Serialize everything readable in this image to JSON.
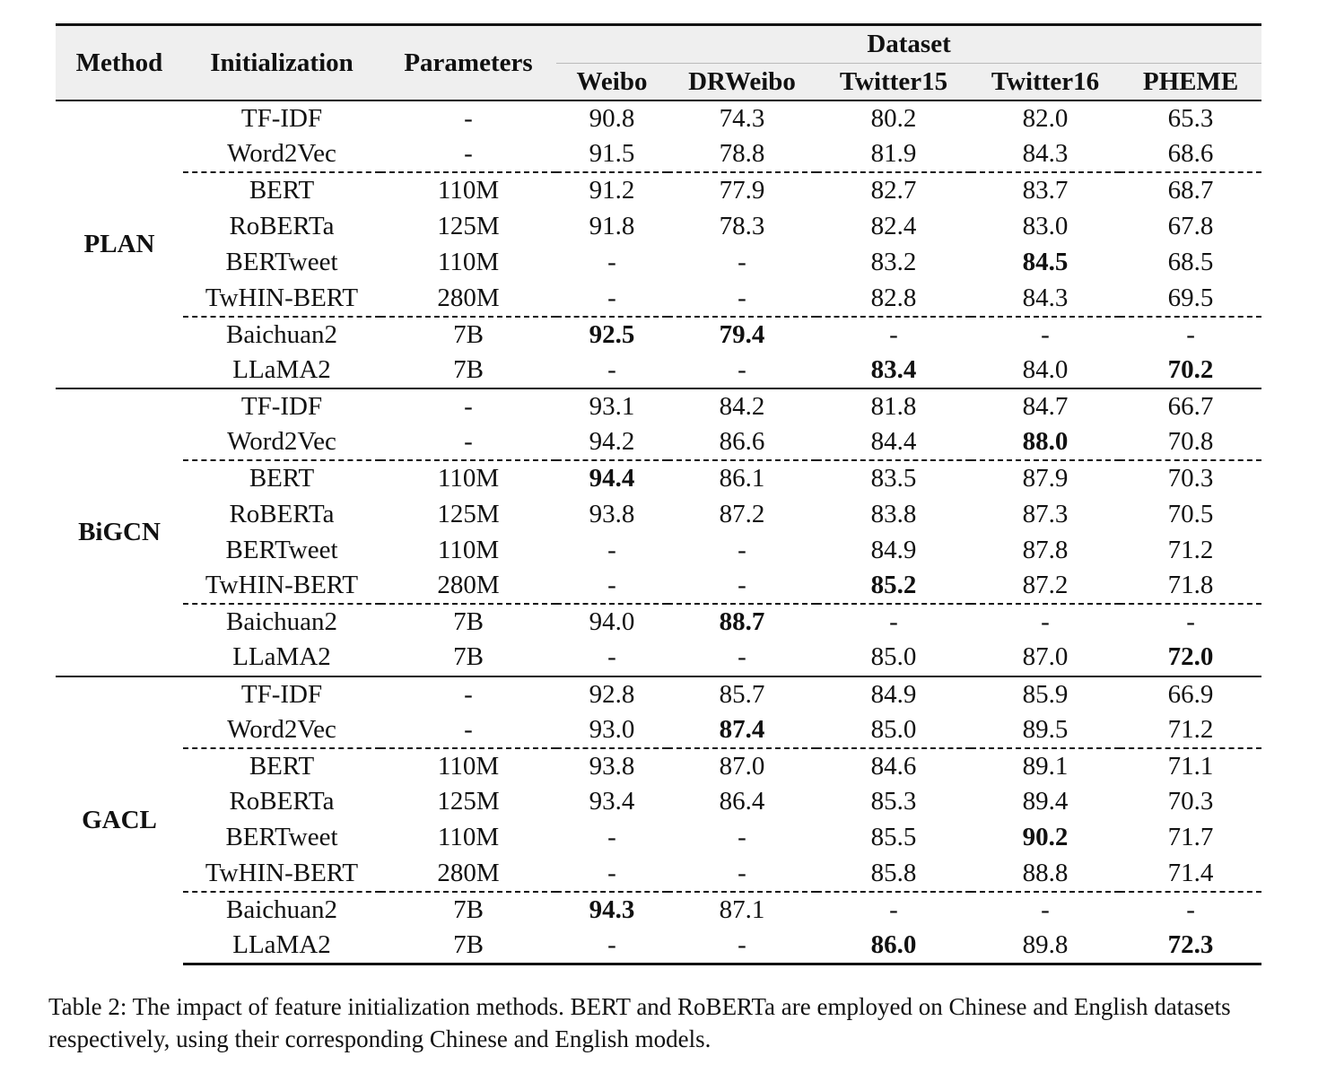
{
  "table": {
    "headers": {
      "method": "Method",
      "initialization": "Initialization",
      "parameters": "Parameters",
      "dataset_group": "Dataset",
      "datasets": [
        "Weibo",
        "DRWeibo",
        "Twitter15",
        "Twitter16",
        "PHEME"
      ]
    },
    "groups": [
      {
        "method": "PLAN",
        "rows": [
          {
            "init": "TF-IDF",
            "params": "-",
            "values": [
              "90.8",
              "74.3",
              "80.2",
              "82.0",
              "65.3"
            ],
            "bold": []
          },
          {
            "init": "Word2Vec",
            "params": "-",
            "values": [
              "91.5",
              "78.8",
              "81.9",
              "84.3",
              "68.6"
            ],
            "bold": []
          },
          {
            "init": "BERT",
            "params": "110M",
            "values": [
              "91.2",
              "77.9",
              "82.7",
              "83.7",
              "68.7"
            ],
            "bold": []
          },
          {
            "init": "RoBERTa",
            "params": "125M",
            "values": [
              "91.8",
              "78.3",
              "82.4",
              "83.0",
              "67.8"
            ],
            "bold": []
          },
          {
            "init": "BERTweet",
            "params": "110M",
            "values": [
              "-",
              "-",
              "83.2",
              "84.5",
              "68.5"
            ],
            "bold": [
              3
            ]
          },
          {
            "init": "TwHIN-BERT",
            "params": "280M",
            "values": [
              "-",
              "-",
              "82.8",
              "84.3",
              "69.5"
            ],
            "bold": []
          },
          {
            "init": "Baichuan2",
            "params": "7B",
            "values": [
              "92.5",
              "79.4",
              "-",
              "-",
              "-"
            ],
            "bold": [
              0,
              1
            ]
          },
          {
            "init": "LLaMA2",
            "params": "7B",
            "values": [
              "-",
              "-",
              "83.4",
              "84.0",
              "70.2"
            ],
            "bold": [
              2,
              4
            ]
          }
        ]
      },
      {
        "method": "BiGCN",
        "rows": [
          {
            "init": "TF-IDF",
            "params": "-",
            "values": [
              "93.1",
              "84.2",
              "81.8",
              "84.7",
              "66.7"
            ],
            "bold": []
          },
          {
            "init": "Word2Vec",
            "params": "-",
            "values": [
              "94.2",
              "86.6",
              "84.4",
              "88.0",
              "70.8"
            ],
            "bold": [
              3
            ]
          },
          {
            "init": "BERT",
            "params": "110M",
            "values": [
              "94.4",
              "86.1",
              "83.5",
              "87.9",
              "70.3"
            ],
            "bold": [
              0
            ]
          },
          {
            "init": "RoBERTa",
            "params": "125M",
            "values": [
              "93.8",
              "87.2",
              "83.8",
              "87.3",
              "70.5"
            ],
            "bold": []
          },
          {
            "init": "BERTweet",
            "params": "110M",
            "values": [
              "-",
              "-",
              "84.9",
              "87.8",
              "71.2"
            ],
            "bold": []
          },
          {
            "init": "TwHIN-BERT",
            "params": "280M",
            "values": [
              "-",
              "-",
              "85.2",
              "87.2",
              "71.8"
            ],
            "bold": [
              2
            ]
          },
          {
            "init": "Baichuan2",
            "params": "7B",
            "values": [
              "94.0",
              "88.7",
              "-",
              "-",
              "-"
            ],
            "bold": [
              1
            ]
          },
          {
            "init": "LLaMA2",
            "params": "7B",
            "values": [
              "-",
              "-",
              "85.0",
              "87.0",
              "72.0"
            ],
            "bold": [
              4
            ]
          }
        ]
      },
      {
        "method": "GACL",
        "rows": [
          {
            "init": "TF-IDF",
            "params": "-",
            "values": [
              "92.8",
              "85.7",
              "84.9",
              "85.9",
              "66.9"
            ],
            "bold": []
          },
          {
            "init": "Word2Vec",
            "params": "-",
            "values": [
              "93.0",
              "87.4",
              "85.0",
              "89.5",
              "71.2"
            ],
            "bold": [
              1
            ]
          },
          {
            "init": "BERT",
            "params": "110M",
            "values": [
              "93.8",
              "87.0",
              "84.6",
              "89.1",
              "71.1"
            ],
            "bold": []
          },
          {
            "init": "RoBERTa",
            "params": "125M",
            "values": [
              "93.4",
              "86.4",
              "85.3",
              "89.4",
              "70.3"
            ],
            "bold": []
          },
          {
            "init": "BERTweet",
            "params": "110M",
            "values": [
              "-",
              "-",
              "85.5",
              "90.2",
              "71.7"
            ],
            "bold": [
              3
            ]
          },
          {
            "init": "TwHIN-BERT",
            "params": "280M",
            "values": [
              "-",
              "-",
              "85.8",
              "88.8",
              "71.4"
            ],
            "bold": []
          },
          {
            "init": "Baichuan2",
            "params": "7B",
            "values": [
              "94.3",
              "87.1",
              "-",
              "-",
              "-"
            ],
            "bold": [
              0
            ]
          },
          {
            "init": "LLaMA2",
            "params": "7B",
            "values": [
              "-",
              "-",
              "86.0",
              "89.8",
              "72.3"
            ],
            "bold": [
              2,
              4
            ]
          }
        ]
      }
    ]
  },
  "caption": "Table 2: The impact of feature initialization methods. BERT and RoBERTa are employed on Chinese and English datasets respectively, using their corresponding Chinese and English models."
}
